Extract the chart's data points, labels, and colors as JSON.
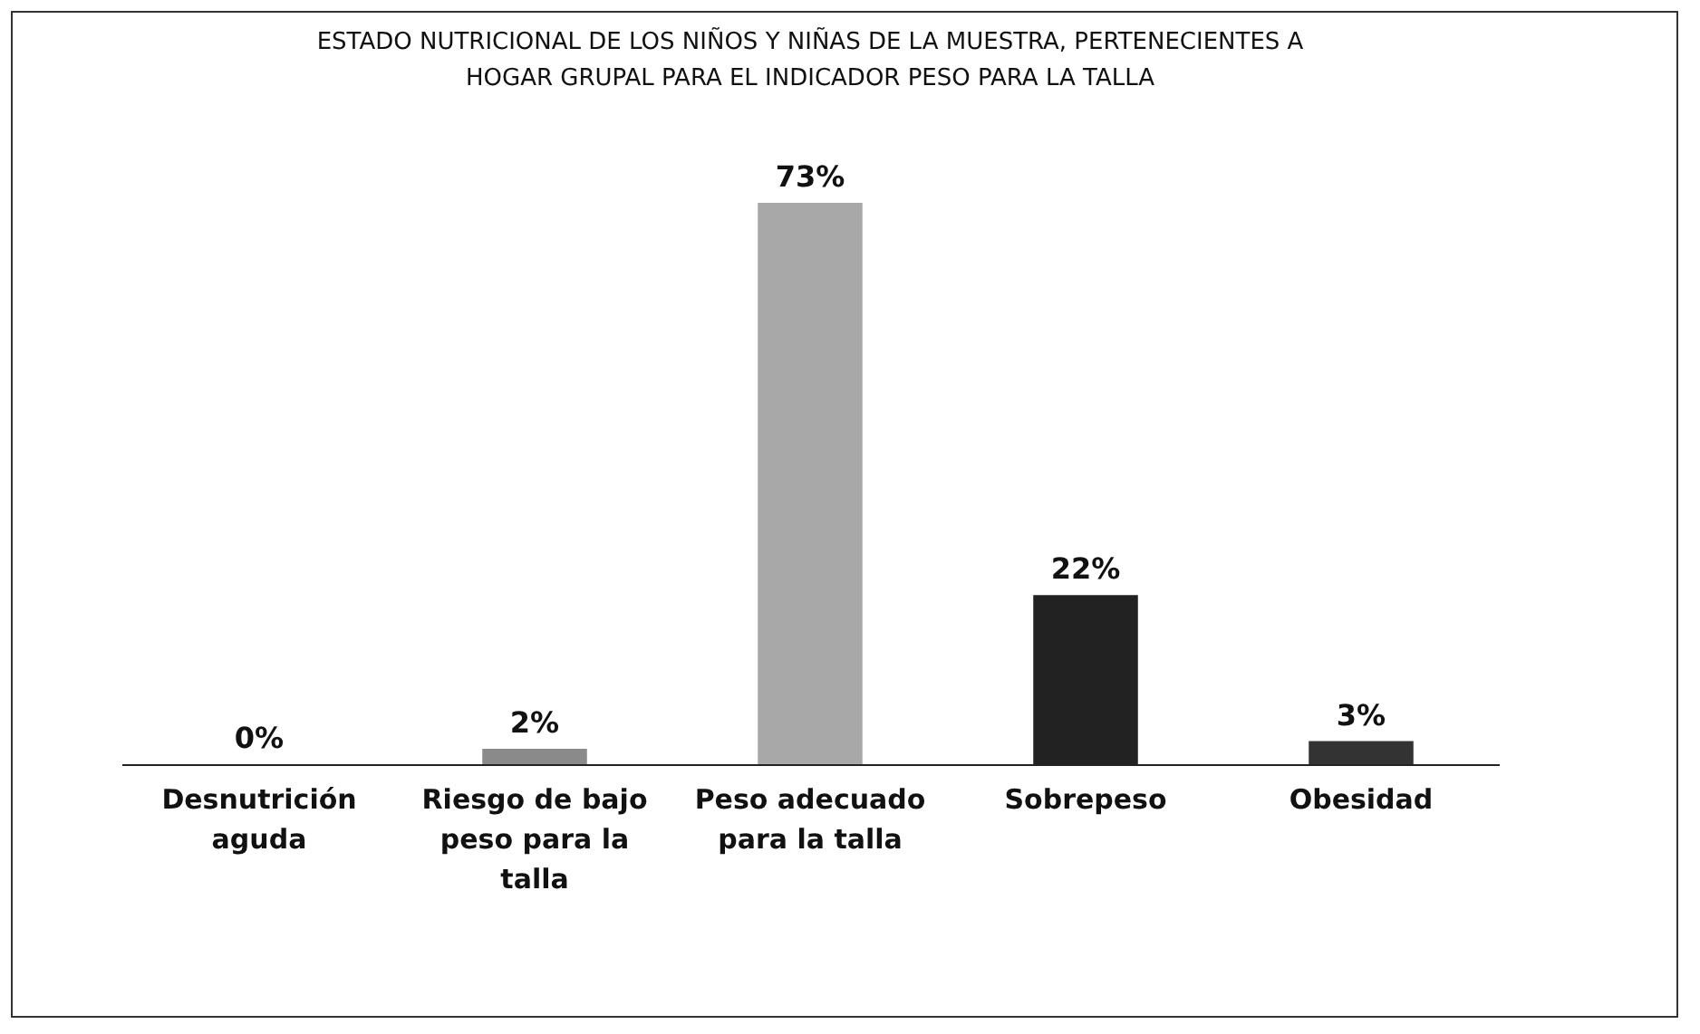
{
  "chart_data": {
    "type": "bar",
    "title": "ESTADO NUTRICIONAL DE LOS NIÑOS Y NIÑAS DE LA MUESTRA, PERTENECIENTES A HOGAR GRUPAL PARA EL INDICADOR PESO  PARA LA TALLA",
    "categories": [
      "Desnutrición aguda",
      "Riesgo de bajo peso para la talla",
      "Peso adecuado para la talla",
      "Sobrepeso",
      "Obesidad"
    ],
    "values": [
      0,
      2,
      73,
      22,
      3
    ],
    "colors": [
      "#808080",
      "#8a8a8a",
      "#a8a8a8",
      "#222222",
      "#333333"
    ],
    "value_labels": [
      "0%",
      "2%",
      "73%",
      "22%",
      "3%"
    ]
  }
}
